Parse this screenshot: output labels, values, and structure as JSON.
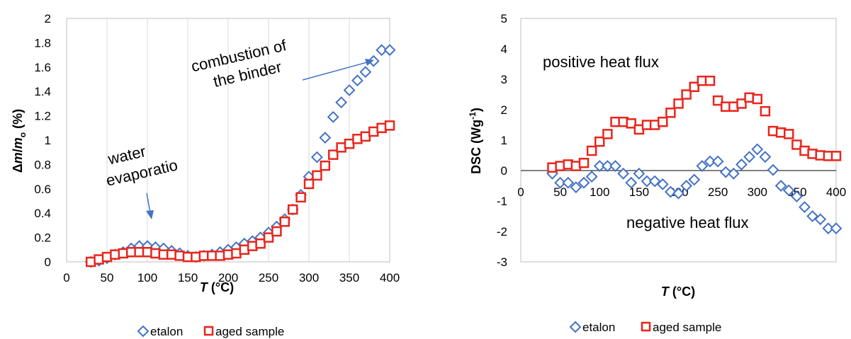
{
  "chart_data": [
    {
      "type": "scatter",
      "xlabel_italic": "T",
      "xlabel_rest": " (°C)",
      "ylabel_html": "Δm/m₀ (%)",
      "ylabel_parts": [
        "Δ",
        "m",
        "/",
        "m",
        "o",
        " (%)"
      ],
      "xlim": [
        0,
        400
      ],
      "ylim": [
        0,
        2
      ],
      "xticks": [
        0,
        50,
        100,
        150,
        200,
        250,
        300,
        350,
        400
      ],
      "yticks": [
        0,
        0.2,
        0.4,
        0.6,
        0.8,
        1,
        1.2,
        1.4,
        1.6,
        1.8,
        2
      ],
      "grid": "vertical",
      "legend_position": "bottom",
      "annotations": [
        {
          "lines": [
            "combustion of",
            "the binder"
          ],
          "arrow_to": [
            385,
            1.63
          ]
        },
        {
          "lines": [
            "water",
            "evaporatio"
          ],
          "arrow_to": [
            105,
            0.17
          ]
        }
      ],
      "series": [
        {
          "name": "etalon",
          "marker": "diamond",
          "color": "#4472C4",
          "x": [
            30,
            40,
            50,
            60,
            70,
            80,
            90,
            100,
            110,
            120,
            130,
            140,
            150,
            160,
            170,
            180,
            190,
            200,
            210,
            220,
            230,
            240,
            250,
            260,
            270,
            280,
            290,
            300,
            310,
            320,
            330,
            340,
            350,
            360,
            370,
            380,
            390,
            400
          ],
          "y": [
            0,
            0.01,
            0.03,
            0.06,
            0.08,
            0.11,
            0.13,
            0.13,
            0.12,
            0.11,
            0.09,
            0.07,
            0.05,
            0.04,
            0.05,
            0.06,
            0.08,
            0.1,
            0.12,
            0.15,
            0.17,
            0.2,
            0.24,
            0.29,
            0.35,
            0.43,
            0.55,
            0.7,
            0.86,
            1.02,
            1.19,
            1.31,
            1.41,
            1.49,
            1.56,
            1.65,
            1.74,
            1.74
          ]
        },
        {
          "name": "aged sample",
          "marker": "square",
          "color": "#E8261C",
          "x": [
            30,
            40,
            50,
            60,
            70,
            80,
            90,
            100,
            110,
            120,
            130,
            140,
            150,
            160,
            170,
            180,
            190,
            200,
            210,
            220,
            230,
            240,
            250,
            260,
            270,
            280,
            290,
            300,
            310,
            320,
            330,
            340,
            350,
            360,
            370,
            380,
            390,
            400
          ],
          "y": [
            0,
            0.02,
            0.04,
            0.06,
            0.07,
            0.08,
            0.08,
            0.08,
            0.07,
            0.06,
            0.06,
            0.05,
            0.04,
            0.04,
            0.05,
            0.05,
            0.05,
            0.06,
            0.07,
            0.1,
            0.13,
            0.15,
            0.2,
            0.25,
            0.33,
            0.43,
            0.53,
            0.64,
            0.71,
            0.79,
            0.88,
            0.94,
            0.97,
            1.01,
            1.03,
            1.07,
            1.1,
            1.12
          ]
        }
      ]
    },
    {
      "type": "scatter",
      "xlabel_italic": "T",
      "xlabel_rest": " (°C)",
      "ylabel_parts": [
        "DSC (Wg",
        "-1",
        ")"
      ],
      "xlim": [
        0,
        400
      ],
      "ylim": [
        -3,
        5
      ],
      "xticks": [
        0,
        50,
        100,
        150,
        200,
        250,
        300,
        350,
        400
      ],
      "yticks": [
        -3,
        -2,
        -1,
        0,
        1,
        2,
        3,
        4,
        5
      ],
      "grid": "none",
      "zero_line": true,
      "legend_position": "bottom",
      "annotations": [
        {
          "lines": [
            "positive heat flux"
          ]
        },
        {
          "lines": [
            "negative heat flux"
          ]
        }
      ],
      "series": [
        {
          "name": "etalon",
          "marker": "diamond",
          "color": "#4472C4",
          "x": [
            40,
            50,
            60,
            70,
            80,
            90,
            100,
            110,
            120,
            130,
            140,
            150,
            160,
            170,
            180,
            190,
            200,
            210,
            220,
            230,
            240,
            250,
            260,
            270,
            280,
            290,
            300,
            310,
            320,
            330,
            340,
            350,
            360,
            370,
            380,
            390,
            400
          ],
          "y": [
            -0.1,
            -0.4,
            -0.4,
            -0.55,
            -0.4,
            -0.2,
            0.15,
            0.15,
            0.15,
            -0.1,
            -0.4,
            -0.1,
            -0.35,
            -0.35,
            -0.45,
            -0.7,
            -0.75,
            -0.5,
            -0.3,
            0.15,
            0.3,
            0.3,
            -0.05,
            -0.1,
            0.2,
            0.45,
            0.7,
            0.45,
            0.02,
            -0.5,
            -0.65,
            -0.85,
            -1.2,
            -1.5,
            -1.6,
            -1.9,
            -1.9
          ]
        },
        {
          "name": "aged sample",
          "marker": "square",
          "color": "#E8261C",
          "x": [
            40,
            50,
            60,
            70,
            80,
            90,
            100,
            110,
            120,
            130,
            140,
            150,
            160,
            170,
            180,
            190,
            200,
            210,
            220,
            230,
            240,
            250,
            260,
            270,
            280,
            290,
            300,
            310,
            320,
            330,
            340,
            350,
            360,
            370,
            380,
            390,
            400
          ],
          "y": [
            0.1,
            0.15,
            0.2,
            0.15,
            0.25,
            0.65,
            0.95,
            1.2,
            1.6,
            1.6,
            1.55,
            1.35,
            1.5,
            1.5,
            1.6,
            1.9,
            2.2,
            2.5,
            2.75,
            2.95,
            2.95,
            2.3,
            2.1,
            2.1,
            2.2,
            2.4,
            2.35,
            1.95,
            1.3,
            1.25,
            1.2,
            0.85,
            0.65,
            0.55,
            0.5,
            0.48,
            0.48
          ]
        }
      ]
    }
  ]
}
